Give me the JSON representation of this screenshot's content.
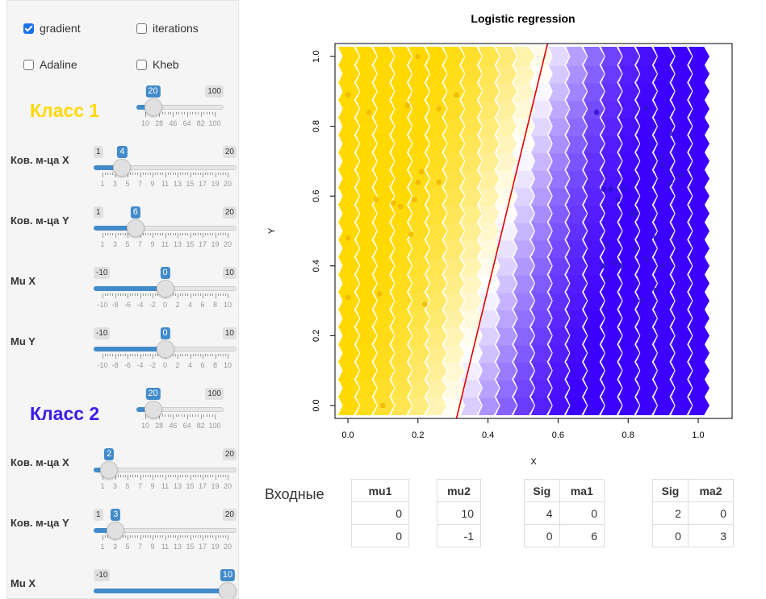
{
  "checkboxes": [
    {
      "label": "gradient",
      "checked": true
    },
    {
      "label": "iterations",
      "checked": false
    },
    {
      "label": "Adaline",
      "checked": false
    },
    {
      "label": "Kheb",
      "checked": false
    }
  ],
  "class1": {
    "title": "Класс 1",
    "color": "#ffd900",
    "count": {
      "min": 10,
      "max": 100,
      "value": 20,
      "min_label": "",
      "max_label": "100",
      "ticks": [
        "10",
        "28",
        "46",
        "64",
        "82",
        "100"
      ]
    },
    "sliders": [
      {
        "label": "Ков. м-ца X",
        "min": 1,
        "max": 20,
        "value": 4,
        "min_label": "1",
        "max_label": "20",
        "ticks": [
          "1",
          "3",
          "5",
          "7",
          "9",
          "11",
          "13",
          "15",
          "17",
          "19",
          "20"
        ]
      },
      {
        "label": "Ков. м-ца Y",
        "min": 1,
        "max": 20,
        "value": 6,
        "min_label": "1",
        "max_label": "20",
        "ticks": [
          "1",
          "3",
          "5",
          "7",
          "9",
          "11",
          "13",
          "15",
          "17",
          "19",
          "20"
        ]
      },
      {
        "label": "Mu X",
        "min": -10,
        "max": 10,
        "value": 0,
        "min_label": "-10",
        "max_label": "10",
        "ticks": [
          "-10",
          "-8",
          "-6",
          "-4",
          "-2",
          "0",
          "2",
          "4",
          "6",
          "8",
          "10"
        ]
      },
      {
        "label": "Mu Y",
        "min": -10,
        "max": 10,
        "value": 0,
        "min_label": "-10",
        "max_label": "10",
        "ticks": [
          "-10",
          "-8",
          "-6",
          "-4",
          "-2",
          "0",
          "2",
          "4",
          "6",
          "8",
          "10"
        ]
      }
    ]
  },
  "class2": {
    "title": "Класс 2",
    "color": "#3c1be8",
    "count": {
      "min": 10,
      "max": 100,
      "value": 20,
      "min_label": "",
      "max_label": "100",
      "ticks": [
        "10",
        "28",
        "46",
        "64",
        "82",
        "100"
      ]
    },
    "sliders": [
      {
        "label": "Ков. м-ца X",
        "min": 1,
        "max": 20,
        "value": 2,
        "min_label": "",
        "max_label": "20",
        "ticks": [
          "1",
          "3",
          "5",
          "7",
          "9",
          "11",
          "13",
          "15",
          "17",
          "19",
          "20"
        ]
      },
      {
        "label": "Ков. м-ца Y",
        "min": 1,
        "max": 20,
        "value": 3,
        "min_label": "1",
        "max_label": "20",
        "ticks": [
          "1",
          "3",
          "5",
          "7",
          "9",
          "11",
          "13",
          "15",
          "17",
          "19",
          "20"
        ]
      },
      {
        "label": "Mu X",
        "min": -10,
        "max": 10,
        "value": 10,
        "min_label": "-10",
        "max_label": "",
        "ticks": []
      }
    ]
  },
  "chart_data": {
    "type": "scatter",
    "title": "Logistic regression",
    "xlabel": "X",
    "ylabel": "Y",
    "xlim": [
      0,
      1
    ],
    "ylim": [
      0,
      1
    ],
    "xticks": [
      "0.0",
      "0.2",
      "0.4",
      "0.6",
      "0.8",
      "1.0"
    ],
    "yticks": [
      "0.0",
      "0.2",
      "0.4",
      "0.6",
      "0.8",
      "1.0"
    ],
    "background_colors": {
      "class1": "#ffd900",
      "class2": "#3c00ff"
    },
    "decision_boundary": {
      "x_at_y0": 0.31,
      "x_at_y1": 0.57,
      "color": "#e00000"
    },
    "series": [
      {
        "name": "",
        "color": "#f0b800",
        "points": [
          [
            0,
            0.89
          ],
          [
            0.06,
            0.84
          ],
          [
            0.2,
            1.0
          ],
          [
            0.17,
            0.86
          ],
          [
            0.26,
            0.85
          ],
          [
            0.31,
            0.89
          ],
          [
            0.21,
            0.67
          ],
          [
            0.2,
            0.64
          ],
          [
            0.26,
            0.64
          ],
          [
            0.13,
            0.58
          ],
          [
            0.15,
            0.57
          ],
          [
            0.19,
            0.59
          ],
          [
            0.08,
            0.59
          ],
          [
            0.18,
            0.49
          ],
          [
            0,
            0.48
          ],
          [
            0,
            0.31
          ],
          [
            0.09,
            0.32
          ],
          [
            0.22,
            0.29
          ],
          [
            0.1,
            0.0
          ]
        ]
      },
      {
        "name": "",
        "color": "#3010d0",
        "points": [
          [
            0.71,
            0.84
          ],
          [
            0.73,
            0.62
          ],
          [
            0.75,
            0.62
          ],
          [
            0.79,
            0.62
          ],
          [
            0.77,
            0.59
          ],
          [
            0.81,
            0.55
          ],
          [
            0.82,
            0.45
          ],
          [
            0.88,
            0.48
          ],
          [
            0.85,
            0.42
          ],
          [
            0.74,
            0.46
          ],
          [
            0.73,
            0.4
          ],
          [
            0.76,
            0.41
          ],
          [
            0.78,
            0.4
          ],
          [
            0.9,
            0.4
          ],
          [
            0.74,
            0.36
          ],
          [
            0.84,
            0.3
          ],
          [
            0.88,
            0.33
          ],
          [
            0.82,
            0.55
          ],
          [
            0.92,
            0.64
          ],
          [
            0.95,
            0.66
          ],
          [
            0.9,
            0.69
          ],
          [
            0.89,
            0.71
          ],
          [
            0.85,
            0.85
          ],
          [
            0.92,
            0.78
          ]
        ]
      }
    ]
  },
  "inputs": {
    "label": "Входные",
    "tables": [
      {
        "headers": [
          "mu1"
        ],
        "rows": [
          [
            "0"
          ],
          [
            "0"
          ]
        ]
      },
      {
        "headers": [
          "mu2"
        ],
        "rows": [
          [
            "10"
          ],
          [
            "-1"
          ]
        ]
      },
      {
        "headers": [
          "Sig",
          "ma1"
        ],
        "rows": [
          [
            "4",
            "0"
          ],
          [
            "0",
            "6"
          ]
        ]
      },
      {
        "headers": [
          "Sig",
          "ma2"
        ],
        "rows": [
          [
            "2",
            "0"
          ],
          [
            "0",
            "3"
          ]
        ]
      }
    ]
  }
}
